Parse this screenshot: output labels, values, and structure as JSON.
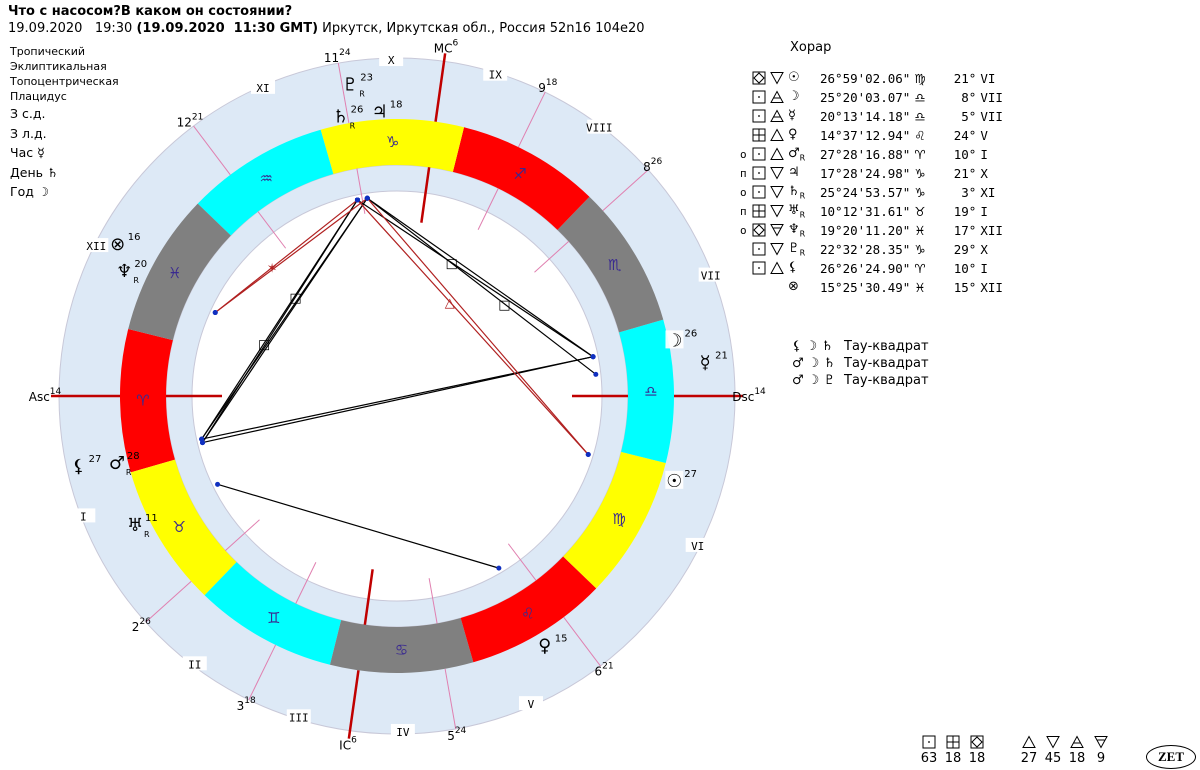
{
  "header": {
    "title": "Что с насосом?В каком он состоянии?",
    "local_date": "19.09.2020",
    "local_time": "19:30",
    "gmt": "(19.09.2020  11:30 GMT)",
    "place": "Иркутск, Иркутская обл., Россия 52n16 104e20"
  },
  "settings": [
    "Тропический",
    "Эклиптикальная",
    "Топоцентрическая",
    "Плацидус"
  ],
  "info": [
    "З с.д.",
    "З л.д.",
    "Час ☿",
    "День ♄",
    "Год ☽"
  ],
  "colors": {
    "fire": "#ff0000",
    "earth": "#ffff00",
    "air": "#00ffff",
    "water": "#808080",
    "ring": "#dde9f6",
    "axis": "#c00000",
    "cusp": "#e080b0",
    "sign_glyph": "#3a2a90"
  },
  "chart": {
    "ascendant_lon": 14,
    "signs": [
      "♈",
      "♉",
      "♊",
      "♋",
      "♌",
      "♍",
      "♎",
      "♏",
      "♐",
      "♑",
      "♒",
      "♓"
    ],
    "sign_elements": [
      "fire",
      "earth",
      "air",
      "water",
      "fire",
      "earth",
      "air",
      "water",
      "fire",
      "earth",
      "air",
      "water"
    ],
    "houses": [
      {
        "num": "Asc",
        "deg": "14",
        "lon": 14,
        "roman": "I"
      },
      {
        "num": "2",
        "deg": "26",
        "lon": 56,
        "roman": "II"
      },
      {
        "num": "3",
        "deg": "18",
        "lon": 78,
        "roman": "III"
      },
      {
        "num": "IC",
        "deg": "6",
        "lon": 96,
        "roman": "IV"
      },
      {
        "num": "5",
        "deg": "24",
        "lon": 114,
        "roman": "V"
      },
      {
        "num": "6",
        "deg": "21",
        "lon": 141,
        "roman": "VI"
      },
      {
        "num": "Dsc",
        "deg": "14",
        "lon": 194,
        "roman": "VII"
      },
      {
        "num": "8",
        "deg": "26",
        "lon": 236,
        "roman": "VIII"
      },
      {
        "num": "9",
        "deg": "18",
        "lon": 258,
        "roman": "IX"
      },
      {
        "num": "MC",
        "deg": "6",
        "lon": 276,
        "roman": "X"
      },
      {
        "num": "11",
        "deg": "24",
        "lon": 294,
        "roman": "XI"
      },
      {
        "num": "12",
        "deg": "21",
        "lon": 321,
        "roman": "XII"
      }
    ],
    "planets": [
      {
        "id": "sun",
        "glyph": "☉",
        "lon": 176.98,
        "deg": "27",
        "retro": false
      },
      {
        "id": "moon",
        "glyph": "☽",
        "lon": 205.33,
        "deg": "26",
        "retro": false
      },
      {
        "id": "mercury",
        "glyph": "☿",
        "lon": 200.22,
        "deg": "21",
        "retro": false
      },
      {
        "id": "venus",
        "glyph": "♀",
        "lon": 134.62,
        "deg": "15",
        "retro": false
      },
      {
        "id": "mars",
        "glyph": "♂",
        "lon": 27.47,
        "deg": "28",
        "retro": true
      },
      {
        "id": "jupiter",
        "glyph": "♃",
        "lon": 287.47,
        "deg": "18",
        "retro": false
      },
      {
        "id": "saturn",
        "glyph": "♄",
        "lon": 295.41,
        "deg": "26",
        "retro": true
      },
      {
        "id": "uranus",
        "glyph": "♅",
        "lon": 40.21,
        "deg": "11",
        "retro": true
      },
      {
        "id": "neptune",
        "glyph": "♆",
        "lon": 349.34,
        "deg": "20",
        "retro": true
      },
      {
        "id": "pluto",
        "glyph": "♇",
        "lon": 292.54,
        "deg": "23",
        "retro": true
      },
      {
        "id": "lilith",
        "glyph": "⚸",
        "lon": 26.44,
        "deg": "27",
        "retro": false
      },
      {
        "id": "fortune",
        "glyph": "⊗",
        "lon": 345.43,
        "deg": "16",
        "retro": false
      }
    ],
    "retro_mark": "R",
    "aspects": [
      {
        "a": "saturn",
        "b": "mars",
        "type": "square"
      },
      {
        "a": "pluto",
        "b": "mars",
        "type": "square"
      },
      {
        "a": "saturn",
        "b": "lilith",
        "type": "square"
      },
      {
        "a": "pluto",
        "b": "lilith",
        "type": "square"
      },
      {
        "a": "saturn",
        "b": "moon",
        "type": "square"
      },
      {
        "a": "pluto",
        "b": "moon",
        "type": "square"
      },
      {
        "a": "pluto",
        "b": "mercury",
        "type": "square"
      },
      {
        "a": "mars",
        "b": "moon",
        "type": "opposition"
      },
      {
        "a": "lilith",
        "b": "moon",
        "type": "opposition"
      },
      {
        "a": "uranus",
        "b": "venus",
        "type": "square"
      },
      {
        "a": "neptune",
        "b": "saturn",
        "type": "sextile"
      },
      {
        "a": "neptune",
        "b": "pluto",
        "type": "sextile"
      },
      {
        "a": "sun",
        "b": "saturn",
        "type": "trine"
      },
      {
        "a": "sun",
        "b": "pluto",
        "type": "trine"
      }
    ],
    "aspect_colors": {
      "square": "#000000",
      "opposition": "#000000",
      "sextile": "#b02020",
      "trine": "#b02020"
    },
    "aspect_glyphs": {
      "square": "□",
      "sextile": "✶",
      "trine": "△",
      "opposition": ""
    }
  },
  "table": {
    "title": "Хорар",
    "rows": [
      {
        "mark": "",
        "box": "diamond",
        "tri": "down",
        "planet": "☉",
        "retro": "",
        "pos": "26°59'02.06\"",
        "sign": "♍",
        "deg": "21°",
        "house": "VI"
      },
      {
        "mark": "",
        "box": "dot",
        "tri": "up-bar",
        "planet": "☽",
        "retro": "",
        "pos": "25°20'03.07\"",
        "sign": "♎",
        "deg": "8°",
        "house": "VII"
      },
      {
        "mark": "",
        "box": "dot",
        "tri": "up-bar",
        "planet": "☿",
        "retro": "",
        "pos": "20°13'14.18\"",
        "sign": "♎",
        "deg": "5°",
        "house": "VII"
      },
      {
        "mark": "",
        "box": "plus",
        "tri": "up",
        "planet": "♀",
        "retro": "",
        "pos": "14°37'12.94\"",
        "sign": "♌",
        "deg": "24°",
        "house": "V"
      },
      {
        "mark": "o",
        "box": "dot",
        "tri": "up",
        "planet": "♂",
        "retro": "R",
        "pos": "27°28'16.88\"",
        "sign": "♈",
        "deg": "10°",
        "house": "I"
      },
      {
        "mark": "п",
        "box": "dot",
        "tri": "down",
        "planet": "♃",
        "retro": "",
        "pos": "17°28'24.98\"",
        "sign": "♑",
        "deg": "21°",
        "house": "X"
      },
      {
        "mark": "o",
        "box": "dot",
        "tri": "down",
        "planet": "♄",
        "retro": "R",
        "pos": "25°24'53.57\"",
        "sign": "♑",
        "deg": "3°",
        "house": "XI"
      },
      {
        "mark": "п",
        "box": "plus",
        "tri": "down",
        "planet": "♅",
        "retro": "R",
        "pos": "10°12'31.61\"",
        "sign": "♉",
        "deg": "19°",
        "house": "I"
      },
      {
        "mark": "o",
        "box": "diamond",
        "tri": "down-bar",
        "planet": "♆",
        "retro": "R",
        "pos": "19°20'11.20\"",
        "sign": "♓",
        "deg": "17°",
        "house": "XII"
      },
      {
        "mark": "",
        "box": "dot",
        "tri": "down",
        "planet": "♇",
        "retro": "R",
        "pos": "22°32'28.35\"",
        "sign": "♑",
        "deg": "29°",
        "house": "X"
      },
      {
        "mark": "",
        "box": "dot",
        "tri": "up",
        "planet": "⚸",
        "retro": "",
        "pos": "26°26'24.90\"",
        "sign": "♈",
        "deg": "10°",
        "house": "I"
      },
      {
        "mark": "",
        "box": "",
        "tri": "",
        "planet": "⊗",
        "retro": "",
        "pos": "15°25'30.49\"",
        "sign": "♓",
        "deg": "15°",
        "house": "XII"
      }
    ]
  },
  "patterns": [
    {
      "glyphs": "⚸ ☽ ♄",
      "name": "Тау-квадрат"
    },
    {
      "glyphs": "♂ ☽ ♄",
      "name": "Тау-квадрат"
    },
    {
      "glyphs": "♂ ☽ ♇",
      "name": "Тау-квадрат"
    }
  ],
  "counts": [
    {
      "symbol": "dot",
      "value": "63"
    },
    {
      "symbol": "plus",
      "value": "18"
    },
    {
      "symbol": "diamond",
      "value": "18"
    },
    {
      "symbol": "up",
      "value": "27"
    },
    {
      "symbol": "down",
      "value": "45"
    },
    {
      "symbol": "up-bar",
      "value": "18"
    },
    {
      "symbol": "down-bar",
      "value": "9"
    }
  ],
  "logo": "ZET"
}
